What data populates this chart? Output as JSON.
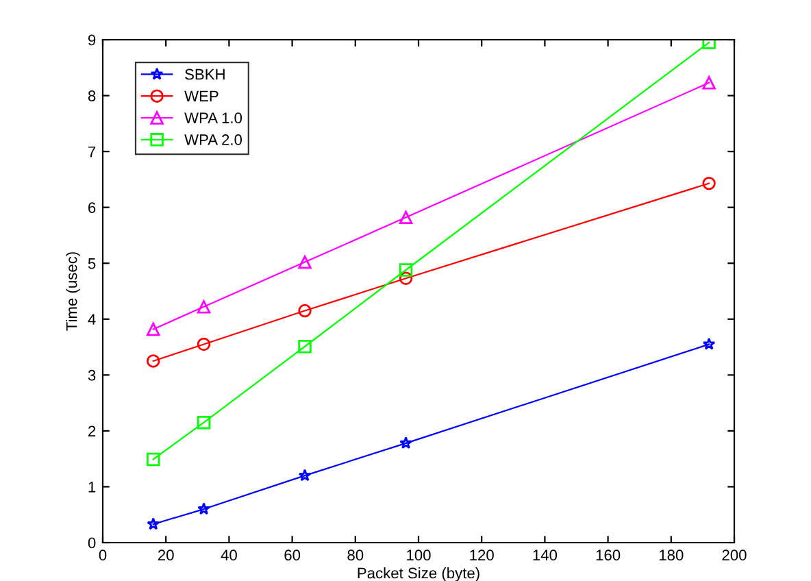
{
  "chart_data": {
    "type": "line",
    "xlabel": "Packet Size (byte)",
    "ylabel": "Time (usec)",
    "x": [
      16,
      32,
      64,
      96,
      192
    ],
    "series": [
      {
        "name": "SBKH",
        "color": "#0000ff",
        "marker": "star",
        "values": [
          0.33,
          0.6,
          1.2,
          1.78,
          3.55
        ]
      },
      {
        "name": "WEP",
        "color": "#ff0000",
        "marker": "circle",
        "values": [
          3.25,
          3.55,
          4.15,
          4.73,
          6.43
        ]
      },
      {
        "name": "WPA 1.0",
        "color": "#ff00ff",
        "marker": "triangle",
        "values": [
          3.82,
          4.22,
          5.02,
          5.82,
          8.23
        ]
      },
      {
        "name": "WPA 2.0",
        "color": "#00ff00",
        "marker": "square",
        "values": [
          1.49,
          2.15,
          3.51,
          4.88,
          8.95
        ]
      }
    ],
    "xlim": [
      0,
      200
    ],
    "xticks": [
      0,
      20,
      40,
      60,
      80,
      100,
      120,
      140,
      160,
      180,
      200
    ],
    "ylim": [
      0,
      9
    ],
    "yticks": [
      0,
      1,
      2,
      3,
      4,
      5,
      6,
      7,
      8,
      9
    ],
    "legend": "top left",
    "grid": false,
    "line_style": "solid"
  }
}
